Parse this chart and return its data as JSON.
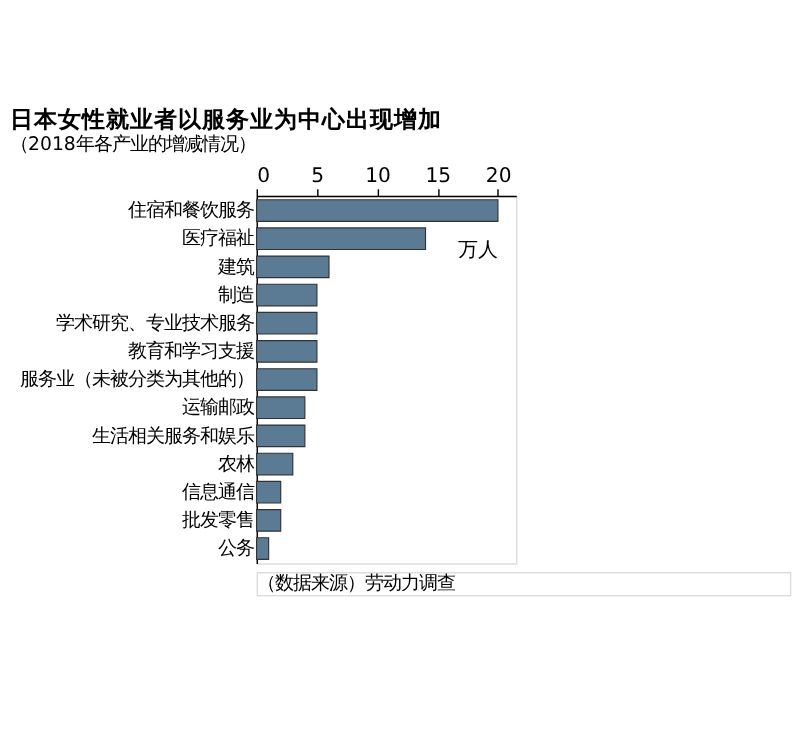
{
  "chart_data": {
    "type": "bar",
    "orientation": "horizontal",
    "title": "日本女性就业者以服务业为中心出现增加",
    "subtitle": "（2018年各产业的增减情况）",
    "categories": [
      "住宿和餐饮服务",
      "医疗福祉",
      "建筑",
      "制造",
      "学术研究、专业技术服务",
      "教育和学习支援",
      "服务业（未被分类为其他的）",
      "运输邮政",
      "生活相关服务和娱乐",
      "农林",
      "信息通信",
      "批发零售",
      "公务"
    ],
    "values": [
      20,
      14,
      6,
      5,
      5,
      5,
      5,
      4,
      4,
      3,
      2,
      2,
      1
    ],
    "color": "#5b7a94",
    "xlim": [
      0,
      21.5
    ],
    "xticks": [
      0,
      5,
      10,
      15,
      20
    ],
    "grid": false,
    "annotations": [
      "万人",
      "（数据来源）劳动力调查"
    ]
  }
}
